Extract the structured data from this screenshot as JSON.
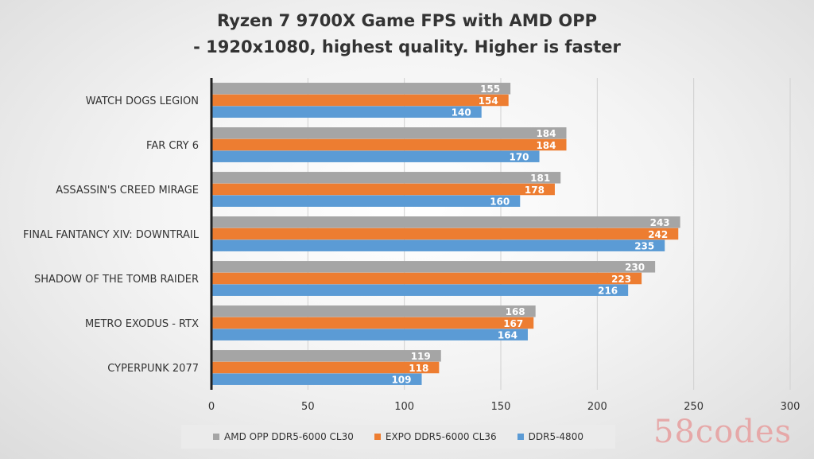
{
  "chart_data": {
    "type": "bar",
    "orientation": "horizontal",
    "title": [
      "Ryzen 7 9700X Game FPS with AMD OPP",
      "- 1920x1080, highest quality. Higher is faster"
    ],
    "categories": [
      "WATCH DOGS LEGION",
      "FAR CRY 6",
      "ASSASSIN'S CREED MIRAGE",
      "FINAL FANTANCY XIV: DOWNTRAIL",
      "SHADOW OF THE TOMB RAIDER",
      "METRO EXODUS - RTX",
      "CYPERPUNK 2077"
    ],
    "series": [
      {
        "name": "AMD OPP DDR5-6000 CL30",
        "color": "#a5a5a5",
        "values": [
          155,
          184,
          181,
          243,
          230,
          168,
          119
        ]
      },
      {
        "name": "EXPO DDR5-6000 CL36",
        "color": "#ed7d31",
        "values": [
          154,
          184,
          178,
          242,
          223,
          167,
          118
        ]
      },
      {
        "name": "DDR5-4800",
        "color": "#5b9bd5",
        "values": [
          140,
          170,
          160,
          235,
          216,
          164,
          109
        ]
      }
    ],
    "xlim": [
      0,
      300
    ],
    "xticks": [
      "0",
      "50",
      "100",
      "150",
      "200",
      "250",
      "300"
    ],
    "grid": true,
    "legend_position": "bottom"
  },
  "watermark": "58codes"
}
